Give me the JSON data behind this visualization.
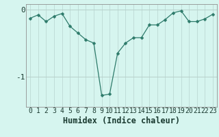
{
  "x": [
    0,
    1,
    2,
    3,
    4,
    5,
    6,
    7,
    8,
    9,
    10,
    11,
    12,
    13,
    14,
    15,
    16,
    17,
    18,
    19,
    20,
    21,
    22,
    23
  ],
  "y": [
    -0.13,
    -0.08,
    -0.18,
    -0.1,
    -0.06,
    -0.25,
    -0.35,
    -0.45,
    -0.5,
    -1.28,
    -1.26,
    -0.65,
    -0.5,
    -0.42,
    -0.42,
    -0.23,
    -0.23,
    -0.15,
    -0.05,
    -0.02,
    -0.18,
    -0.18,
    -0.14,
    -0.07
  ],
  "line_color": "#2d7a6a",
  "marker": "D",
  "marker_size": 2.5,
  "bg_color": "#d6f5ef",
  "grid_color_v": "#c0ddd8",
  "grid_color_h": "#b8d0ca",
  "axis_label_color": "#1a3a30",
  "xlabel": "Humidex (Indice chaleur)",
  "ylim": [
    -1.45,
    0.08
  ],
  "yticks": [
    0,
    -1
  ],
  "xticks": [
    0,
    1,
    2,
    3,
    4,
    5,
    6,
    7,
    8,
    9,
    10,
    11,
    12,
    13,
    14,
    15,
    16,
    17,
    18,
    19,
    20,
    21,
    22,
    23
  ],
  "xlabel_fontsize": 8.5,
  "ytick_fontsize": 8,
  "xtick_fontsize": 7
}
